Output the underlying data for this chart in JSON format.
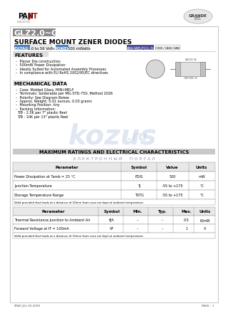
{
  "bg_color": "#ffffff",
  "border_color": "#cccccc",
  "title": "GLZ2.0~GLZ56",
  "subtitle": "SURFACE MOUNT ZENER DIODES",
  "voltage_label": "VOLTAGE",
  "voltage_value": "2.0 to 56 Volts",
  "power_label": "POWER",
  "power_value": "500 mWatts",
  "package_label": "MINI-MELF/LL-34",
  "features_title": "FEATURES",
  "features": [
    "Planar Die construction",
    "500mW Power Dissipation",
    "Ideally Suited for Automated Assembly Processes",
    "In compliance with EU RoHS 2002/95/EC directives"
  ],
  "mech_title": "MECHANICAL DATA",
  "mech_data": [
    "Case: Molded Glass, MINI-MELF",
    "Terminals: Solderable per MIL-STD-750, Method 2026",
    "Polarity: See Diagram Below",
    "Approx. Weight: 0.01 ounces, 0.03 grams",
    "Mounting Position: Any",
    "Packing Information:",
    "  T/B - 2.5K per 7\" plastic Reel",
    "  T/B - 10K per 13\" plastic Reel"
  ],
  "section_title": "MAXIMUM RATINGS AND ELECTRICAL CHARACTERISTICS",
  "cyrillic_text": "Э Л Е К Т Р О Н Н Ы Й     П О Р Т А Л",
  "table1_headers": [
    "Parameter",
    "Symbol",
    "Value",
    "Units"
  ],
  "table1_col_centers": [
    84,
    185,
    232,
    273
  ],
  "table1_col_dividers": [
    160,
    210,
    255
  ],
  "table1_rows": [
    [
      "Power Dissipation at Tamb = 25 °C",
      "PDIS",
      "500",
      "mW"
    ],
    [
      "Junction Temperature",
      "TJ",
      "-55 to +175",
      "°C"
    ],
    [
      "Storage Temperature Range",
      "TSTG",
      "-55 to +175",
      "°C"
    ]
  ],
  "table1_note": "Valid provided that leads at a distance of 10mm from case are kept at ambient temperature.",
  "table2_headers": [
    "Parameter",
    "Symbol",
    "Min.",
    "Typ.",
    "Max.",
    "Units"
  ],
  "table2_col_centers": [
    65,
    147,
    183,
    218,
    252,
    278
  ],
  "table2_col_dividers": [
    128,
    163,
    198,
    233,
    262
  ],
  "table2_rows": [
    [
      "Thermal Resistance Junction to Ambient Air",
      "θJA",
      "–",
      "–",
      "0.5",
      "K/mW"
    ],
    [
      "Forward Voltage at IF = 100mA",
      "VF",
      "–",
      "–",
      "1",
      "V"
    ]
  ],
  "table2_note": "Valid provided that leads at a distance of 10mm from case are kept at ambient temperature.",
  "footer_left": "STAD-JUL.30.2009",
  "footer_right": "PAGE : 1",
  "watermark": "kozus",
  "watermark_sub": ".ru",
  "header_gray": "#e8e8e8",
  "voltage_bg": "#4d7fbf",
  "power_bg": "#4d7fbf",
  "package_bg": "#4d4d99",
  "mech_bg": "#e0e0e0",
  "section_bg": "#c8c8c8",
  "table_header_bg": "#e8e8e8"
}
